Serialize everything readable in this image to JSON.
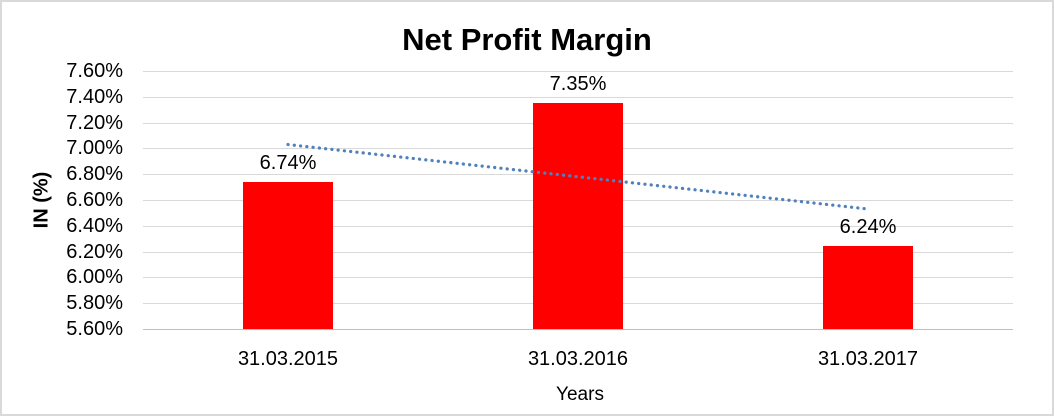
{
  "chart_data": {
    "type": "bar",
    "title": "Net Profit Margin",
    "xlabel": "Years",
    "ylabel": "IN (%)",
    "categories": [
      "31.03.2015",
      "31.03.2016",
      "31.03.2017"
    ],
    "values": [
      6.74,
      7.35,
      6.24
    ],
    "data_labels": [
      "6.74%",
      "7.35%",
      "6.24%"
    ],
    "ylim": [
      5.6,
      7.6
    ],
    "ytick_step": 0.2,
    "ytick_labels": [
      "5.60%",
      "5.80%",
      "6.00%",
      "6.20%",
      "6.40%",
      "6.60%",
      "6.80%",
      "7.00%",
      "7.20%",
      "7.40%",
      "7.60%"
    ],
    "grid": true,
    "legend": "none",
    "bar_color": "#ff0000",
    "trendline": {
      "type": "linear",
      "style": "dotted",
      "color": "#4f81bd",
      "start_value": 7.03,
      "end_value": 6.53
    },
    "colors": {
      "gridline": "#d9d9d9",
      "axis_line": "#bfbfbf",
      "text": "#000000",
      "background": "#ffffff",
      "border": "#d9d9d9"
    }
  }
}
